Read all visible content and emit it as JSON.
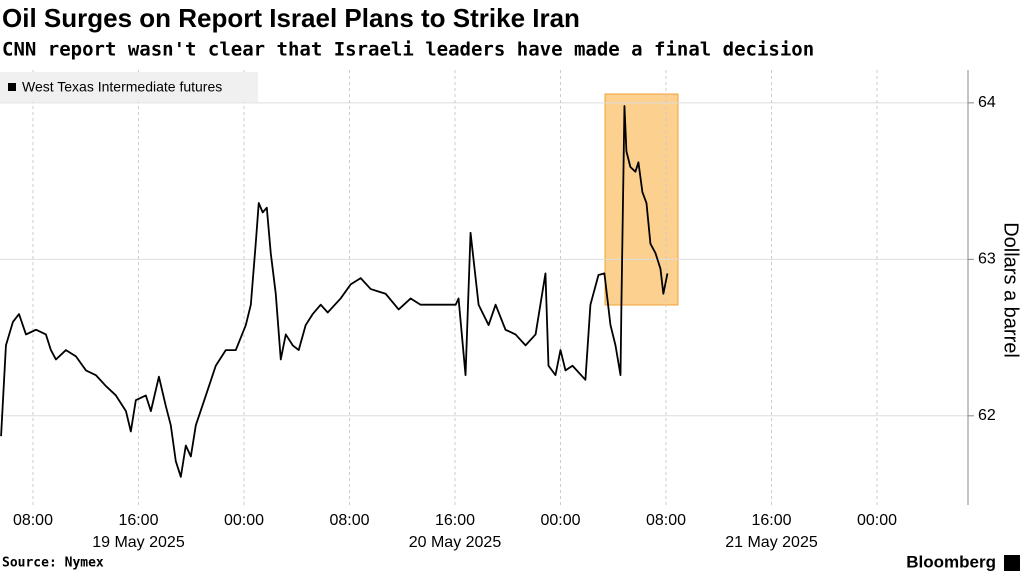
{
  "chart_data": {
    "type": "line",
    "title": "Oil Surges on Report Israel Plans to Strike Iran",
    "subtitle": "CNN report wasn't clear that Israeli leaders have made a final decision",
    "source": "Source: Nymex",
    "brand": "Bloomberg",
    "y_label": "Dollars a barrel",
    "x": [
      5.58,
      5.95,
      6.48,
      6.94,
      7.47,
      8.23,
      8.98,
      9.36,
      9.74,
      10.5,
      11.26,
      12.02,
      12.77,
      13.53,
      14.29,
      15.05,
      15.42,
      15.8,
      16.56,
      16.94,
      17.55,
      18.08,
      18.45,
      18.83,
      19.21,
      19.59,
      19.97,
      20.35,
      21.11,
      21.86,
      22.62,
      23.38,
      24.14,
      24.52,
      24.89,
      25.12,
      25.42,
      25.73,
      26.03,
      26.41,
      26.79,
      27.17,
      27.7,
      28.15,
      28.68,
      29.21,
      29.82,
      30.35,
      31.33,
      32.09,
      32.85,
      33.61,
      34.74,
      35.73,
      36.64,
      37.39,
      38.91,
      40.05,
      40.27,
      40.8,
      41.18,
      41.79,
      42.55,
      43.08,
      43.83,
      44.59,
      45.35,
      46.11,
      46.86,
      47.09,
      47.62,
      48,
      48.38,
      48.91,
      49.89,
      50.27,
      50.88,
      51.33,
      51.79,
      52.17,
      52.55,
      52.62,
      52.85,
      53,
      53.3,
      53.68,
      53.91,
      54.21,
      54.52,
      54.82,
      55.2,
      55.58,
      55.8,
      56.11
    ],
    "series": [
      {
        "name": "West Texas Intermediate futures",
        "color": "#000000",
        "values": [
          61.87,
          62.45,
          62.6,
          62.65,
          62.52,
          62.55,
          62.52,
          62.42,
          62.36,
          62.42,
          62.38,
          62.29,
          62.26,
          62.19,
          62.13,
          62.03,
          61.9,
          62.1,
          62.13,
          62.03,
          62.25,
          62.06,
          61.94,
          61.71,
          61.61,
          61.81,
          61.74,
          61.94,
          62.13,
          62.32,
          62.42,
          62.42,
          62.58,
          62.71,
          63.1,
          63.36,
          63.3,
          63.33,
          63.04,
          62.78,
          62.36,
          62.52,
          62.45,
          62.42,
          62.58,
          62.65,
          62.71,
          62.66,
          62.75,
          62.84,
          62.88,
          62.81,
          62.78,
          62.68,
          62.75,
          62.71,
          62.71,
          62.71,
          62.75,
          62.26,
          63.17,
          62.71,
          62.58,
          62.71,
          62.55,
          62.52,
          62.45,
          62.52,
          62.91,
          62.32,
          62.26,
          62.42,
          62.29,
          62.32,
          62.23,
          62.71,
          62.9,
          62.91,
          62.58,
          62.45,
          62.26,
          62.71,
          63.98,
          63.69,
          63.59,
          63.56,
          63.62,
          63.43,
          63.36,
          63.1,
          63.04,
          62.94,
          62.78,
          62.91
        ]
      }
    ],
    "xlim": [
      5.5,
      78.9
    ],
    "ylim": [
      61.43,
      64.21
    ],
    "yticks": [
      62,
      63,
      64
    ],
    "xticks": [
      {
        "value": 8,
        "label": "08:00"
      },
      {
        "value": 16,
        "label": "16:00"
      },
      {
        "value": 24,
        "label": "00:00"
      },
      {
        "value": 32,
        "label": "08:00"
      },
      {
        "value": 40,
        "label": "16:00"
      },
      {
        "value": 48,
        "label": "00:00"
      },
      {
        "value": 56,
        "label": "08:00"
      },
      {
        "value": 64,
        "label": "16:00"
      },
      {
        "value": 72,
        "label": "00:00"
      }
    ],
    "date_labels": [
      {
        "value": 16,
        "label": "19 May 2025"
      },
      {
        "value": 40,
        "label": "20 May 2025"
      },
      {
        "value": 64,
        "label": "21 May 2025"
      }
    ],
    "grid": true
  }
}
